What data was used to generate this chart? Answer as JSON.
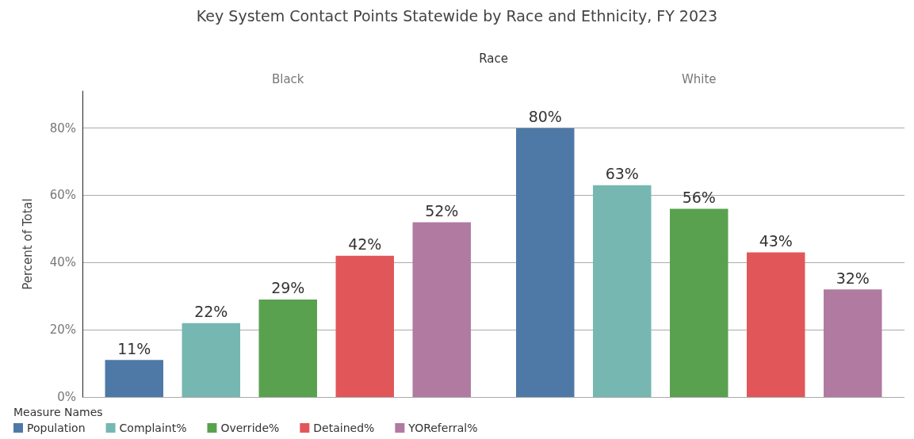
{
  "chart_data": {
    "type": "bar",
    "title": "Key System Contact Points Statewide by Race and Ethnicity, FY 2023",
    "xlabel": "Race",
    "ylabel": "Percent of Total",
    "legend_title": "Measure Names",
    "categories": [
      "Black",
      "White"
    ],
    "series": [
      {
        "name": "Population",
        "color": "#4e79a7",
        "values": [
          11,
          80
        ],
        "value_labels": [
          "11%",
          "80%"
        ]
      },
      {
        "name": "Complaint%",
        "color": "#76b7b2",
        "values": [
          22,
          63
        ],
        "value_labels": [
          "22%",
          "63%"
        ]
      },
      {
        "name": "Override%",
        "color": "#59a14f",
        "values": [
          29,
          56
        ],
        "value_labels": [
          "29%",
          "56%"
        ]
      },
      {
        "name": "Detained%",
        "color": "#e15759",
        "values": [
          42,
          43
        ],
        "value_labels": [
          "42%",
          "43%"
        ]
      },
      {
        "name": "YOReferral%",
        "color": "#b07aa1",
        "values": [
          52,
          32
        ],
        "value_labels": [
          "52%",
          "32%"
        ]
      }
    ],
    "ylim": [
      0,
      91
    ],
    "yticks": [
      {
        "value": 0,
        "label": "0%"
      },
      {
        "value": 20,
        "label": "20%"
      },
      {
        "value": 40,
        "label": "40%"
      },
      {
        "value": 60,
        "label": "60%"
      },
      {
        "value": 80,
        "label": "80%"
      }
    ],
    "grid": "y",
    "legend": "bottom left"
  }
}
